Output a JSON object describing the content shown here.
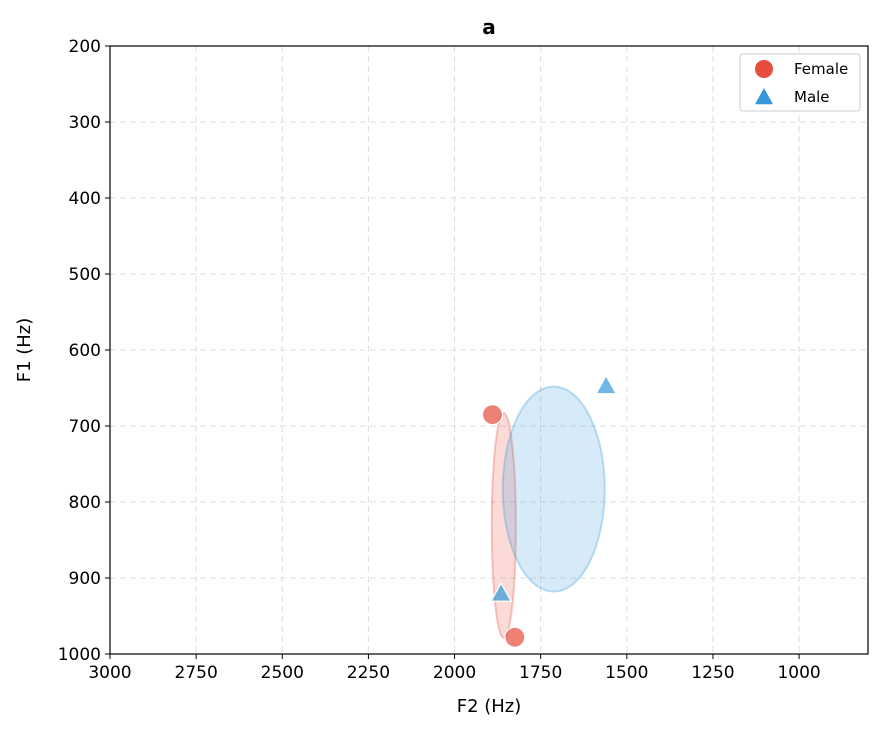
{
  "chart_data": {
    "type": "scatter",
    "title": "a",
    "xlabel": "F2 (Hz)",
    "ylabel": "F1 (Hz)",
    "xlim": [
      3000,
      800
    ],
    "ylim": [
      1000,
      200
    ],
    "x_reversed": true,
    "y_reversed": true,
    "xticks": [
      3000,
      2750,
      2500,
      2250,
      2000,
      1750,
      1500,
      1250,
      1000
    ],
    "yticks": [
      200,
      300,
      400,
      500,
      600,
      700,
      800,
      900,
      1000
    ],
    "grid": true,
    "legend_position": "top-right",
    "series": [
      {
        "name": "Female",
        "marker": "circle",
        "color": "#e74c3c",
        "points": [
          {
            "x": 1890,
            "y": 685
          },
          {
            "x": 1825,
            "y": 978
          }
        ],
        "ellipse": {
          "cx": 1857,
          "cy": 831,
          "rx": 35,
          "ry": 148
        }
      },
      {
        "name": "Male",
        "marker": "triangle",
        "color": "#3498db",
        "points": [
          {
            "x": 1560,
            "y": 647
          },
          {
            "x": 1865,
            "y": 920
          }
        ],
        "ellipse": {
          "cx": 1712,
          "cy": 783,
          "rx": 148,
          "ry": 135
        }
      }
    ]
  }
}
